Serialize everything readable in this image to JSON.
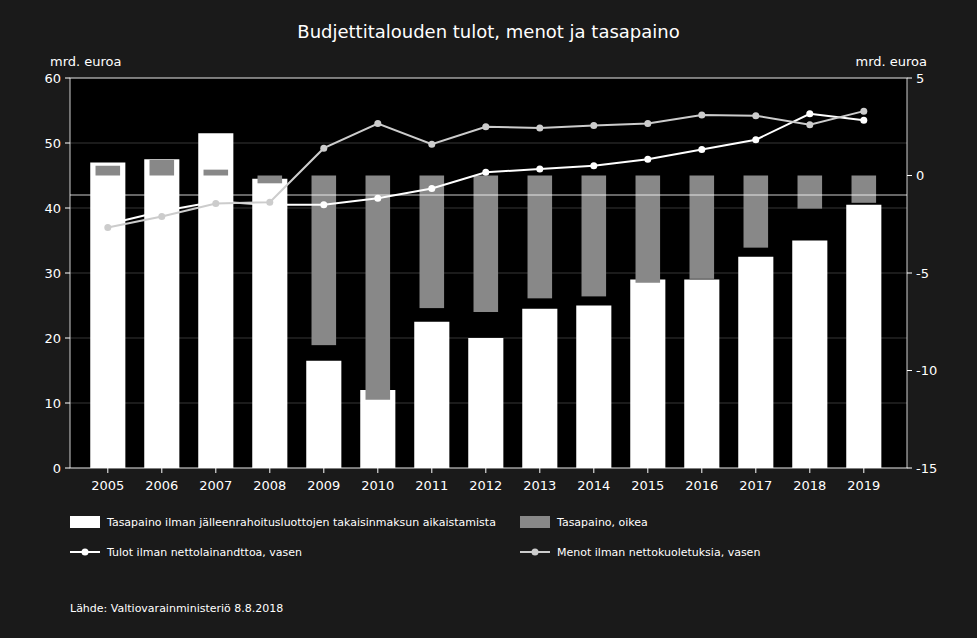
{
  "chart_data": {
    "type": "bar",
    "title": "Budjettitalouden tulot, menot ja tasapaino",
    "x": [
      2005,
      2006,
      2007,
      2008,
      2009,
      2010,
      2011,
      2012,
      2013,
      2014,
      2015,
      2016,
      2017,
      2018,
      2019
    ],
    "xlim": [
      2004.3,
      2019.8
    ],
    "xticks": [
      2005,
      2006,
      2007,
      2008,
      2009,
      2010,
      2011,
      2012,
      2013,
      2014,
      2015,
      2016,
      2017,
      2018,
      2019
    ],
    "ylabel": "mrd.  euroa",
    "y2label": "mrd.  euroa",
    "ylim": [
      0,
      60
    ],
    "yticks": [
      0,
      10,
      20,
      30,
      40,
      50,
      60
    ],
    "y2lim": [
      -15,
      5
    ],
    "y2ticks": [
      -15,
      -10,
      -5,
      0,
      5
    ],
    "grid": true,
    "legend": "bottom",
    "series": [
      {
        "name": "Tasapaino ilman jälleenrahoitusluottojen takaisinmaksun aikaistamista",
        "type": "bar",
        "axis": "y",
        "color": "#ffffff",
        "values": [
          47.0,
          47.5,
          51.5,
          44.5,
          16.5,
          12.0,
          22.5,
          20.0,
          24.5,
          25.0,
          29.0,
          29.0,
          32.5,
          35.0,
          40.5
        ]
      },
      {
        "name": "Tasapaino, oikea",
        "type": "bar",
        "axis": "y2",
        "color": "#888888",
        "values": [
          0.5,
          0.8,
          0.3,
          -0.4,
          -8.7,
          -11.5,
          -6.8,
          -7.0,
          -6.3,
          -6.2,
          -5.5,
          -5.3,
          -3.7,
          -1.7,
          -1.4
        ]
      },
      {
        "name": "Tulot ilman nettolainandttoa, vasen",
        "type": "line",
        "axis": "y",
        "color": "#ffffff",
        "marker": "circle",
        "values": [
          37.5,
          39.5,
          41.0,
          40.5,
          40.5,
          41.5,
          43.0,
          45.5,
          46.0,
          46.5,
          47.5,
          49.0,
          50.5,
          54.5,
          53.5
        ]
      },
      {
        "name": "Menot ilman nettokuoletuksia, vasen",
        "type": "line",
        "axis": "y",
        "color": "#cccccc",
        "marker": "circle",
        "values": [
          37.0,
          38.7,
          40.7,
          40.9,
          49.2,
          53.0,
          49.8,
          52.5,
          52.3,
          52.7,
          53.0,
          54.3,
          54.2,
          52.8,
          54.9
        ]
      }
    ],
    "annotations": [
      {
        "text": "Lähde:  Valtiovarainministeriö  8.8.2018"
      },
      {
        "type": "hline",
        "y": 42.0,
        "axis": "y"
      }
    ]
  }
}
